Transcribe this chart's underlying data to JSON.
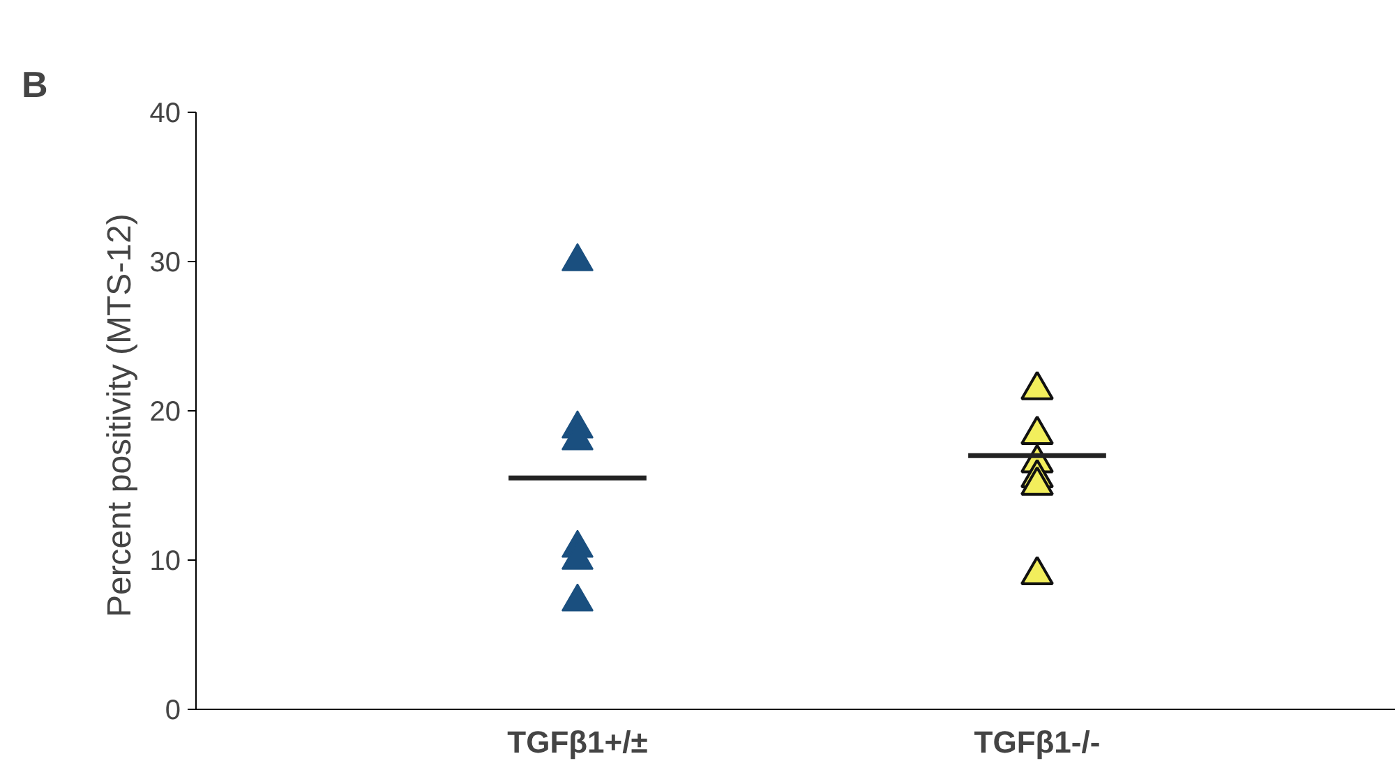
{
  "chart_data": {
    "type": "scatter",
    "title": "B",
    "ylabel": "Percent positivity  (MTS-12)",
    "categories": [
      "TGFβ1+/±",
      "TGFβ1-/-"
    ],
    "ylim": [
      0,
      40
    ],
    "yticks": [
      0,
      10,
      20,
      30,
      40
    ],
    "grid": false,
    "marker": "triangle",
    "series": [
      {
        "color": "#1a4f7f",
        "x": [
          "TGFβ1+/±",
          "TGFβ1+/±",
          "TGFβ1+/±",
          "TGFβ1+/±",
          "TGFβ1+/±",
          "TGFβ1+/±"
        ],
        "values": [
          30,
          18.8,
          18,
          10.8,
          10,
          7.2
        ]
      },
      {
        "color": "#f2ee5c",
        "x": [
          "TGFβ1-/-",
          "TGFβ1-/-",
          "TGFβ1-/-",
          "TGFβ1-/-",
          "TGFβ1-/-",
          "TGFβ1-/-"
        ],
        "values": [
          21.4,
          18.4,
          16.5,
          15.5,
          15.0,
          9.0
        ]
      },
      {
        "type": "box",
        "color": "#222222",
        "boxes": [
          {
            "low": 15.5,
            "q1": 15.5,
            "median": 15.5,
            "q3": 15.5,
            "high": 15.5
          },
          {
            "low": 17.0,
            "q1": 17.0,
            "median": 17.0,
            "q3": 17.0,
            "high": 17.0
          }
        ]
      }
    ]
  }
}
